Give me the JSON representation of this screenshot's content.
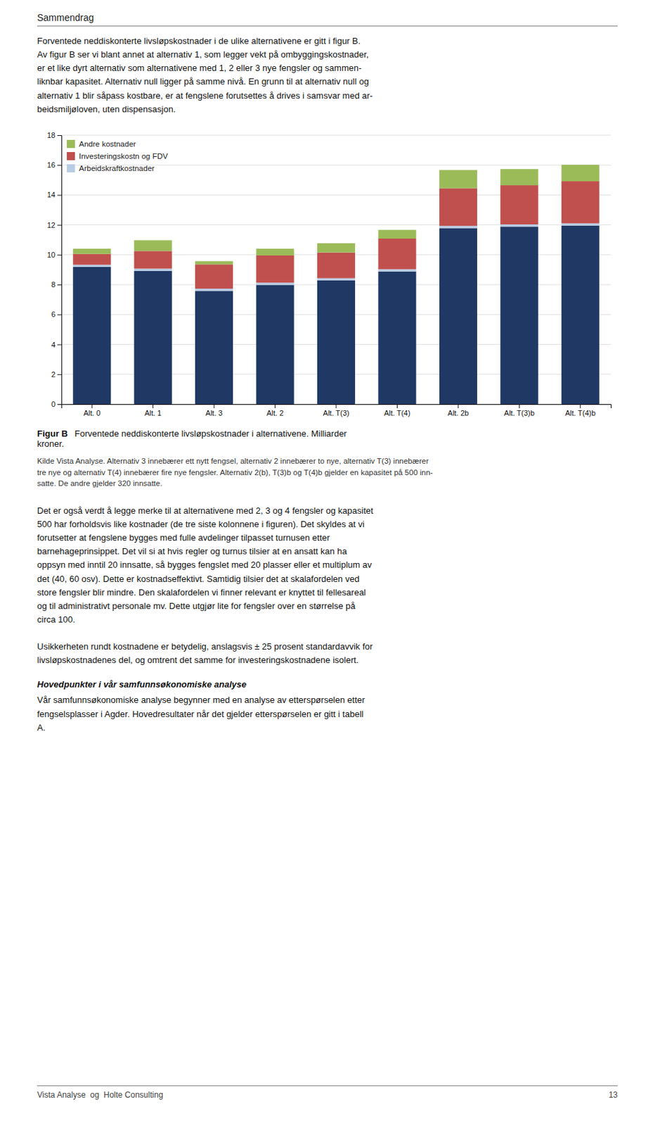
{
  "chart_data": {
    "type": "bar",
    "stacked": true,
    "categories": [
      "Alt. 0",
      "Alt. 1",
      "Alt. 3",
      "Alt. 2",
      "Alt. T(3)",
      "Alt. T(4)",
      "Alt. 2b",
      "Alt. T(3)b",
      "Alt. T(4)b"
    ],
    "series": [
      {
        "color": "#1f3864",
        "values": [
          9.18,
          8.92,
          7.58,
          7.98,
          8.28,
          8.88,
          11.78,
          11.88,
          11.95
        ]
      },
      {
        "name": "Arbeidskraftkostnader",
        "color": "#b8cce4",
        "values": [
          0.15,
          0.15,
          0.15,
          0.15,
          0.15,
          0.15,
          0.15,
          0.15,
          0.15
        ]
      },
      {
        "name": "Investeringskostn og FDV",
        "color": "#c0504d",
        "values": [
          0.72,
          1.18,
          1.62,
          1.82,
          1.72,
          2.05,
          2.52,
          2.62,
          2.82
        ]
      },
      {
        "name": "Andre kostnader",
        "color": "#9bbb59",
        "values": [
          0.35,
          0.72,
          0.22,
          0.45,
          0.62,
          0.58,
          1.22,
          1.08,
          1.1
        ]
      }
    ],
    "ylim": [
      0,
      18
    ],
    "yticks": [
      0,
      2,
      4,
      6,
      8,
      10,
      12,
      14,
      16,
      18
    ],
    "grid": true,
    "legend": "upper left"
  },
  "header": "Sammendrag",
  "text_before": "Forventede neddiskonterte livsløpskostnader i de ulike alternativene er gitt i figur B.\nAv figur B ser vi blant annet at alternativ 1, som legger vekt på ombyggingskostnader,\ner et like dyrt alternativ som alternativene med 1, 2 eller 3 nye fengsler og sammen-\nliknbar kapasitet. Alternativ null ligger på samme nivå. En grunn til at alternativ null og\nalternativ 1 blir såpass kostbare, er at fengslene forutsettes å drives i samsvar med ar-\nbeidsmiljøloven, uten dispensasjon.",
  "caption_bold": "Figur B",
  "caption_rest": "Forventede neddiskonterte livsløpskostnader i alternativene.  Milliarder\nkroner.",
  "kilde_text": "Kilde Vista Analyse. Alternativ 3 innebærer ett nytt fengsel, alternativ 2 innebærer to nye, alternativ T(3) innebærer\ntre nye og alternativ T(4) innebærer fire nye fengsler. Alternativ 2(b), T(3)b og T(4)b gjelder en kapasitet på 500 inn-\nsatte. De andre gjelder 320 innsatte.",
  "text_after": "Det er også verdt å legge merke til at alternativene med 2, 3 og 4 fengsler og kapasitet\n500 har forholdsvis like kostnader (de tre siste kolonnene i figuren). Det skyldes at vi\nforutsetter at fengslene bygges med fulle avdelinger tilpasset turnusen etter\nbarnehageprinsippet. Det vil si at hvis regler og turnus tilsier at en ansatt kan ha\noppsyn med inntil 20 innsatte, så bygges fengslet med 20 plasser eller et multiplum av\ndet (40, 60 osv). Dette er kostnadseffektivt. Samtidig tilsier det at skalafordelen ved\nstore fengsler blir mindre. Den skalafordelen vi finner relevant er knyttet til fellesareal\nog til administrativt personale mv. Dette utgjør lite for fengsler over en størrelse på\ncirca 100.",
  "uncert_text": "Usikkerheten rundt kostnadene er betydelig, anslagsvis ± 25 prosent standardavvik for\nlivsløpskostnadenes del, og omtrent det samme for investeringskostnadene isolert.",
  "heading_italic": "Hovedpunkter i vår samfunnsøkonomiske analyse",
  "last_text": "Vår samfunnsøkonomiske analyse begynner med en analyse av etterspørselen etter\nfengselsplasser i Agder. Hovedresultater når det gjelder etterspørselen er gitt i tabell\nA.",
  "footer_left": "Vista Analyse  og  Holte Consulting",
  "footer_right": "13"
}
